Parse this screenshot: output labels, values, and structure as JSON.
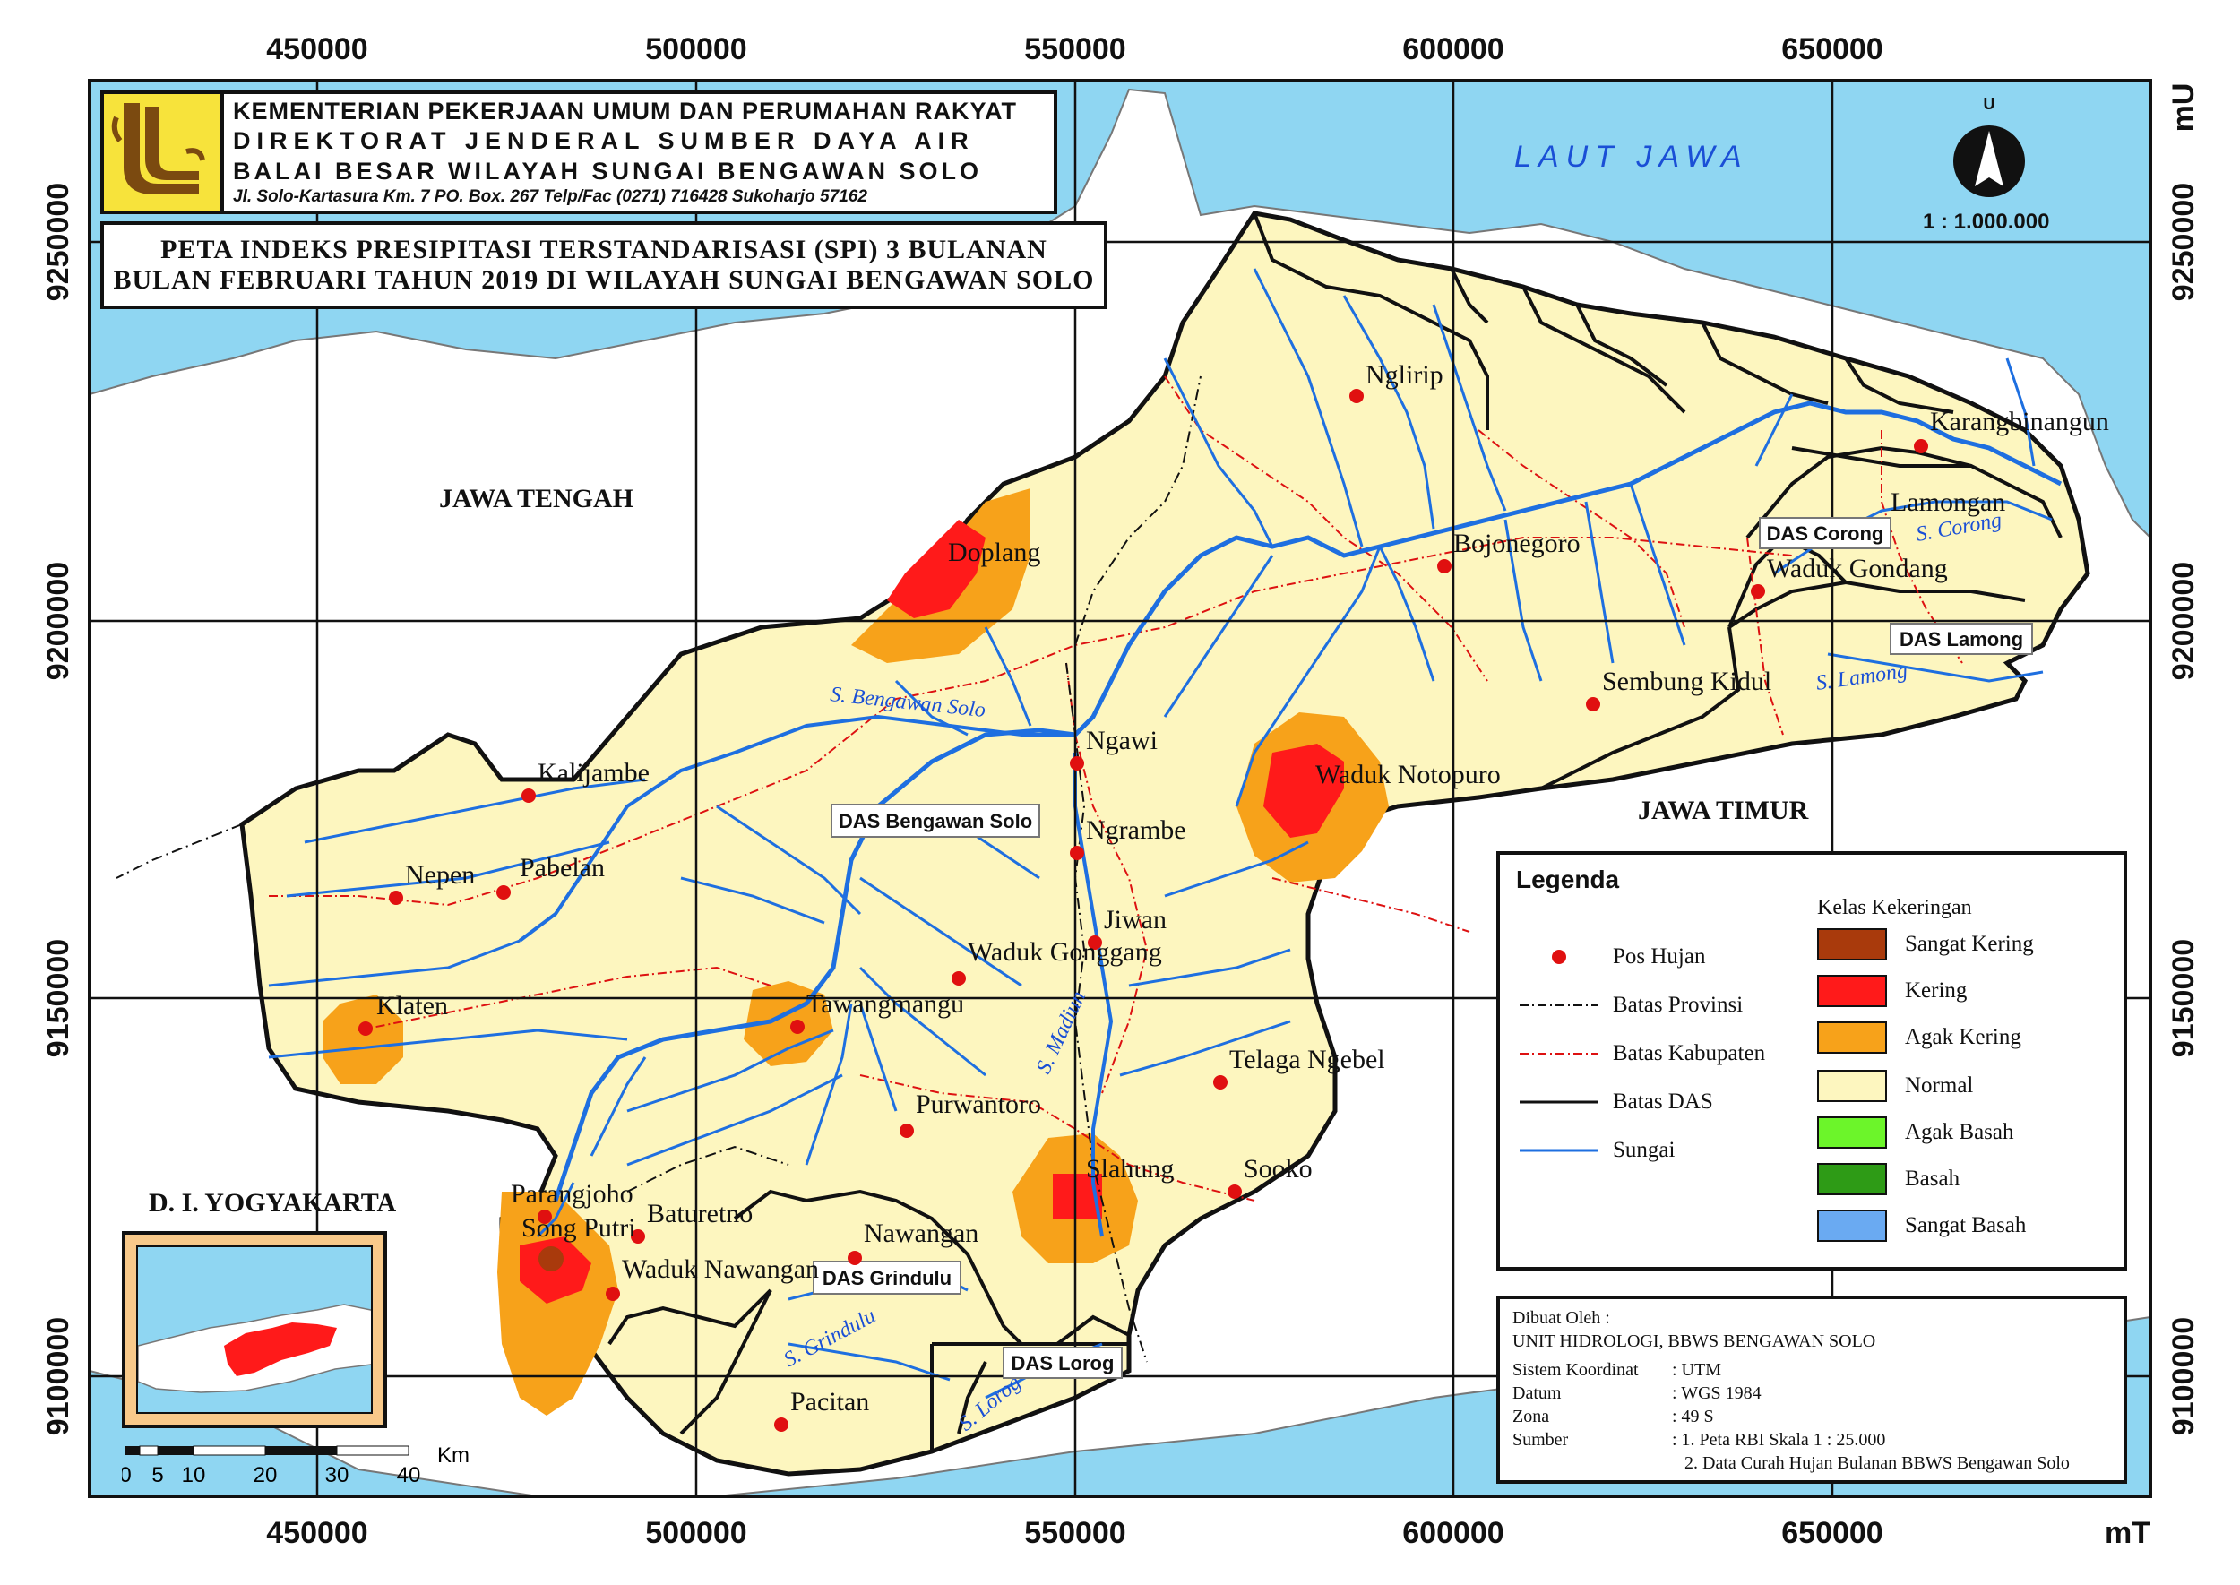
{
  "header": {
    "line1": "KEMENTERIAN PEKERJAAN UMUM DAN PERUMAHAN RAKYAT",
    "line2": "DIREKTORAT JENDERAL SUMBER DAYA AIR",
    "line3": "BALAI BESAR WILAYAH SUNGAI BENGAWAN SOLO",
    "line4": "Jl. Solo-Kartasura Km. 7 PO. Box. 267 Telp/Fac (0271) 716428 Sukoharjo 57162"
  },
  "title": {
    "line1": "PETA INDEKS PRESIPITASI TERSTANDARISASI (SPI) 3 BULANAN",
    "line2": "BULAN FEBRUARI TAHUN 2019 DI WILAYAH SUNGAI BENGAWAN SOLO"
  },
  "grid": {
    "x_labels": [
      "450000",
      "500000",
      "550000",
      "600000",
      "650000"
    ],
    "y_labels": [
      "9250000",
      "9200000",
      "9150000",
      "9100000"
    ],
    "x_axis_unit": "mT",
    "y_axis_unit": "mU"
  },
  "compass": {
    "north_letter": "U",
    "scale": "1 : 1.000.000"
  },
  "regions": {
    "sea": "LAUT JAWA",
    "jawa_tengah": "JAWA TENGAH",
    "jawa_timur": "JAWA TIMUR",
    "diy": "D. I. YOGYAKARTA"
  },
  "das_labels": {
    "bengawan_solo": "DAS Bengawan Solo",
    "corong": "DAS Corong",
    "lamong": "DAS Lamong",
    "grindulu": "DAS Grindulu",
    "lorog": "DAS Lorog"
  },
  "rivers": {
    "bengawan_solo": "S. Bengawan Solo",
    "madiun": "S. Madiun",
    "lamong": "S. Lamong",
    "corong": "S. Corong",
    "grindulu": "S. Grindulu",
    "lorog": "S. Lorog"
  },
  "stations": [
    {
      "name": "Nglirip"
    },
    {
      "name": "Karangbinangun"
    },
    {
      "name": "Lamongan"
    },
    {
      "name": "Doplang"
    },
    {
      "name": "Bojonegoro"
    },
    {
      "name": "Waduk Gondang"
    },
    {
      "name": "Sembung Kidul"
    },
    {
      "name": "Kalijambe"
    },
    {
      "name": "Ngawi"
    },
    {
      "name": "Waduk Notopuro"
    },
    {
      "name": "Ngrambe"
    },
    {
      "name": "Nepen"
    },
    {
      "name": "Pabelan"
    },
    {
      "name": "Jiwan"
    },
    {
      "name": "Waduk Gonggang"
    },
    {
      "name": "Klaten"
    },
    {
      "name": "Tawangmangu"
    },
    {
      "name": "Telaga Ngebel"
    },
    {
      "name": "Purwantoro"
    },
    {
      "name": "Slahung"
    },
    {
      "name": "Sooko"
    },
    {
      "name": "Parangjoho"
    },
    {
      "name": "Song Putri"
    },
    {
      "name": "Baturetno"
    },
    {
      "name": "Nawangan"
    },
    {
      "name": "Waduk Nawangan"
    },
    {
      "name": "Pacitan"
    }
  ],
  "legend": {
    "title": "Legenda",
    "class_title": "Kelas Kekeringan",
    "items": [
      {
        "label": "Pos Hujan"
      },
      {
        "label": "Batas Provinsi"
      },
      {
        "label": "Batas Kabupaten"
      },
      {
        "label": "Batas DAS"
      },
      {
        "label": "Sungai"
      }
    ],
    "classes": [
      {
        "label": "Sangat Kering",
        "color": "#a93a0c"
      },
      {
        "label": "Kering",
        "color": "#ff1a1a"
      },
      {
        "label": "Agak Kering",
        "color": "#f7a21a"
      },
      {
        "label": "Normal",
        "color": "#fdf6bf"
      },
      {
        "label": "Agak Basah",
        "color": "#6cf52a"
      },
      {
        "label": "Basah",
        "color": "#2e9b16"
      },
      {
        "label": "Sangat Basah",
        "color": "#6aaaf2"
      }
    ]
  },
  "credits": {
    "made_by_label": "Dibuat Oleh :",
    "made_by": "UNIT HIDROLOGI, BBWS BENGAWAN SOLO",
    "rows": [
      {
        "key": "Sistem Koordinat",
        "val": ": UTM"
      },
      {
        "key": "Datum",
        "val": ": WGS 1984"
      },
      {
        "key": "Zona",
        "val": ": 49 S"
      },
      {
        "key": "Sumber",
        "val": ": 1. Peta RBI Skala 1 : 25.000"
      },
      {
        "key": "",
        "val": "2. Data Curah Hujan Bulanan BBWS Bengawan Solo"
      }
    ]
  },
  "scalebar": {
    "ticks": [
      "0",
      "5",
      "10",
      "20",
      "30",
      "40"
    ],
    "unit": "Km"
  },
  "colors": {
    "sea": "#8fd6f2",
    "land_other": "#ffffff",
    "normal": "#fdf6bf",
    "agak_kering": "#f7a21a",
    "kering": "#ff1a1a",
    "sangat_kering": "#a93a0c",
    "river": "#1e6fe0"
  }
}
